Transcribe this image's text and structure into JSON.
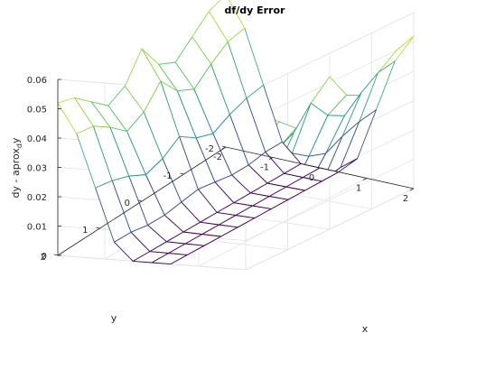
{
  "chart_data": {
    "type": "surface",
    "title": "df/dy Error",
    "xlabel": "x",
    "ylabel": "y",
    "zlabel_parts": {
      "main": "dy - aprox",
      "sub": "d",
      "tail": "y"
    },
    "xlim": [
      -2,
      2
    ],
    "ylim": [
      -2,
      2
    ],
    "zlim": [
      0,
      0.06
    ],
    "x_ticks": [
      "-2",
      "-1",
      "0",
      "1",
      "2"
    ],
    "y_ticks": [
      "-2",
      "-1",
      "0",
      "1",
      "2"
    ],
    "z_ticks": [
      "0",
      "0.01",
      "0.02",
      "0.03",
      "0.04",
      "0.05",
      "0.06"
    ],
    "grid": true,
    "colormap": [
      "#440154",
      "#3b528b",
      "#21918c",
      "#5ec962",
      "#fde725"
    ],
    "x": [
      -2,
      -1.6,
      -1.2,
      -0.8,
      -0.4,
      0,
      0.4,
      0.8,
      1.2,
      1.6,
      2
    ],
    "y": [
      -2,
      -1.6,
      -1.2,
      -0.8,
      -0.4,
      0,
      0.4,
      0.8,
      1.2,
      1.6,
      2
    ],
    "z": [
      [
        0.052,
        0.042,
        0.024,
        0.006,
        0.0,
        0.0,
        0.0,
        0.006,
        0.024,
        0.042,
        0.052
      ],
      [
        0.05,
        0.041,
        0.023,
        0.006,
        0.0,
        0.0,
        0.0,
        0.006,
        0.023,
        0.041,
        0.05
      ],
      [
        0.045,
        0.037,
        0.021,
        0.005,
        0.0,
        0.0,
        0.0,
        0.005,
        0.021,
        0.037,
        0.045
      ],
      [
        0.04,
        0.032,
        0.018,
        0.005,
        0.0,
        0.0,
        0.0,
        0.005,
        0.018,
        0.032,
        0.04
      ],
      [
        0.043,
        0.035,
        0.02,
        0.006,
        0.0,
        0.0,
        0.0,
        0.006,
        0.02,
        0.035,
        0.043
      ],
      [
        0.052,
        0.042,
        0.024,
        0.007,
        0.0,
        0.0,
        0.0,
        0.007,
        0.024,
        0.042,
        0.052
      ],
      [
        0.043,
        0.035,
        0.02,
        0.006,
        0.0,
        0.0,
        0.0,
        0.006,
        0.02,
        0.035,
        0.043
      ],
      [
        0.04,
        0.032,
        0.018,
        0.005,
        0.0,
        0.0,
        0.0,
        0.005,
        0.018,
        0.032,
        0.04
      ],
      [
        0.045,
        0.037,
        0.021,
        0.005,
        0.0,
        0.0,
        0.0,
        0.005,
        0.021,
        0.037,
        0.045
      ],
      [
        0.05,
        0.041,
        0.023,
        0.006,
        0.0,
        0.0,
        0.0,
        0.006,
        0.023,
        0.041,
        0.05
      ],
      [
        0.052,
        0.042,
        0.024,
        0.006,
        0.0,
        0.0,
        0.0,
        0.006,
        0.024,
        0.042,
        0.052
      ]
    ]
  }
}
